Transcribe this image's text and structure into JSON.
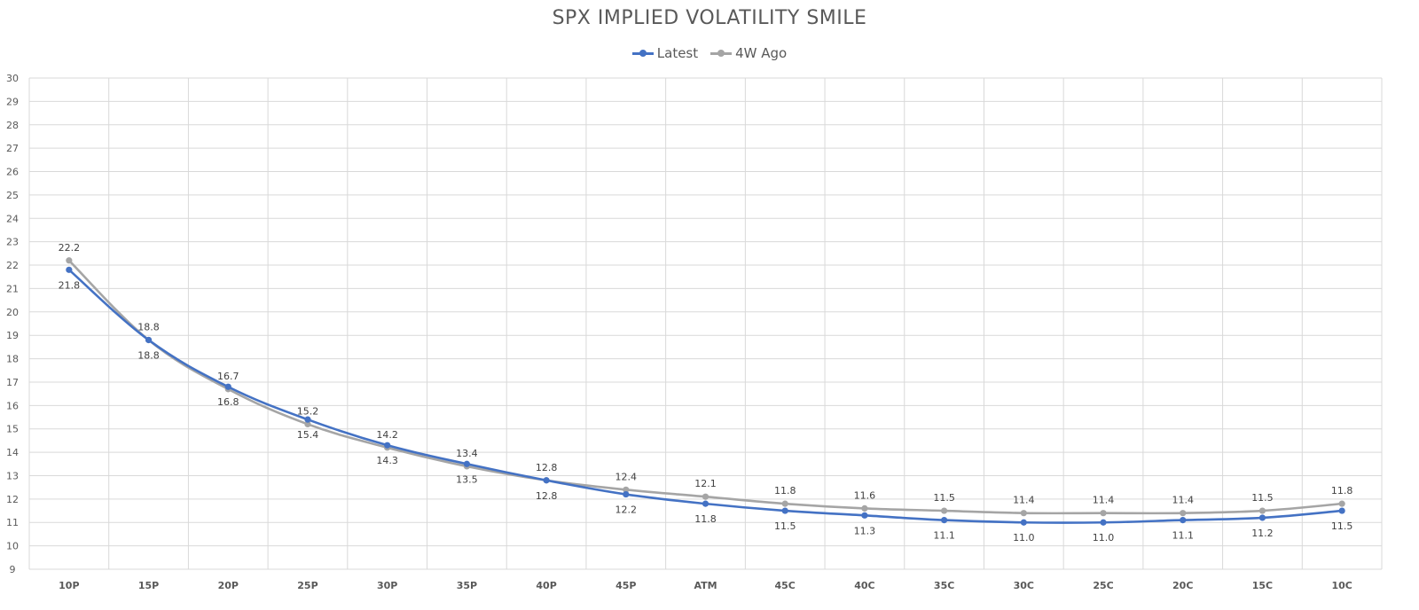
{
  "chart_data": {
    "type": "line",
    "title": "SPX IMPLIED VOLATILITY SMILE",
    "categories": [
      "10P",
      "15P",
      "20P",
      "25P",
      "30P",
      "35P",
      "40P",
      "45P",
      "ATM",
      "45C",
      "40C",
      "35C",
      "30C",
      "25C",
      "20C",
      "15C",
      "10C"
    ],
    "ylim": [
      9,
      30
    ],
    "yticks": [
      9,
      10,
      11,
      12,
      13,
      14,
      15,
      16,
      17,
      18,
      19,
      20,
      21,
      22,
      23,
      24,
      25,
      26,
      27,
      28,
      29,
      30
    ],
    "grid": true,
    "legend_position": "top",
    "series": [
      {
        "name": "Latest",
        "color": "#4472c4",
        "values": [
          21.8,
          18.8,
          16.8,
          15.4,
          14.3,
          13.5,
          12.8,
          12.2,
          11.8,
          11.5,
          11.3,
          11.1,
          11.0,
          11.0,
          11.1,
          11.2,
          11.5
        ],
        "labels": [
          "21.8",
          "18.8",
          "16.8",
          "15.4",
          "14.3",
          "13.5",
          "12.8",
          "12.2",
          "11.8",
          "11.5",
          "11.3",
          "11.1",
          "11.0",
          "11.0",
          "11.1",
          "11.2",
          "11.5"
        ],
        "label_position": "below"
      },
      {
        "name": "4W Ago",
        "color": "#a5a5a5",
        "values": [
          22.2,
          18.8,
          16.7,
          15.2,
          14.2,
          13.4,
          12.8,
          12.4,
          12.1,
          11.8,
          11.6,
          11.5,
          11.4,
          11.4,
          11.4,
          11.5,
          11.8
        ],
        "labels": [
          "22.2",
          "18.8",
          "16.7",
          "15.2",
          "14.2",
          "13.4",
          "12.8",
          "12.4",
          "12.1",
          "11.8",
          "11.6",
          "11.5",
          "11.4",
          "11.4",
          "11.4",
          "11.5",
          "11.8"
        ],
        "label_position": "above"
      }
    ]
  }
}
